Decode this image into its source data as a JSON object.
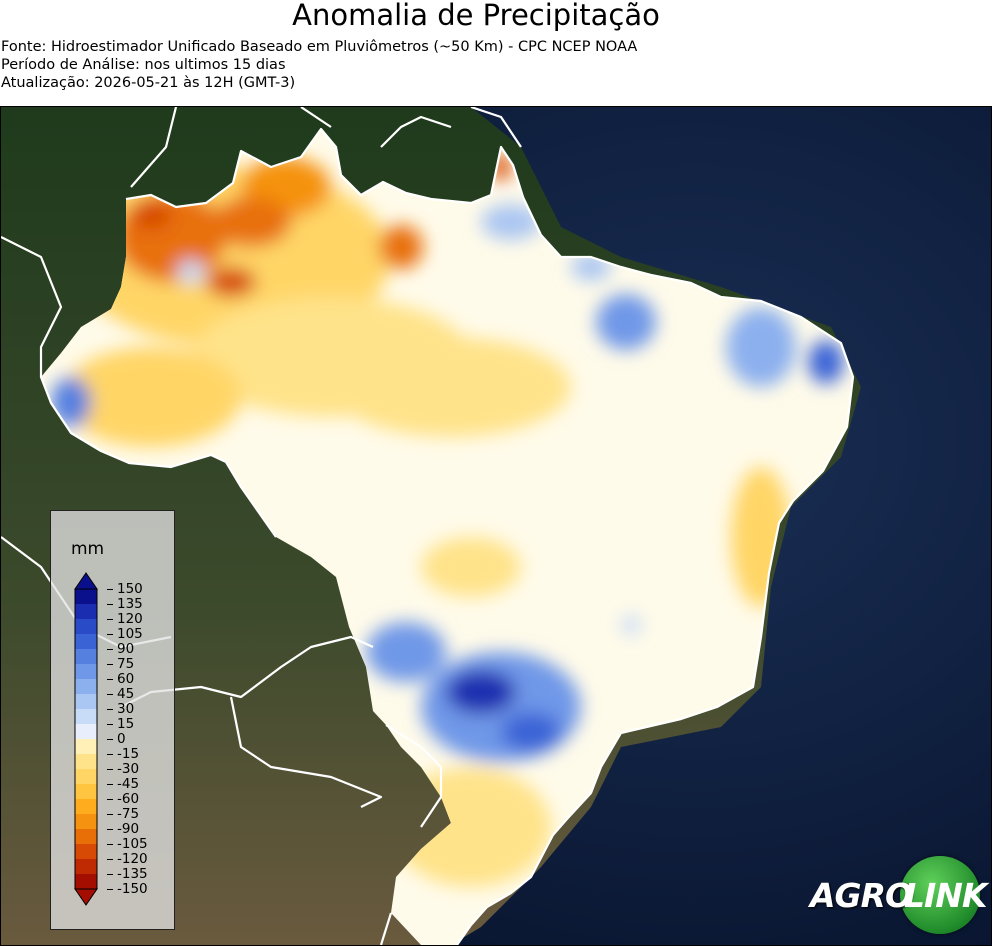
{
  "header": {
    "title": "Anomalia de Precipitação",
    "source": "Fonte: Hidroestimador Unificado Baseado em Pluviômetros (~50 Km) - CPC NCEP NOAA",
    "period": "Período de Análise: nos ultimos 15 dias",
    "updated": "Atualização: 2026-05-21 às 12H (GMT-3)"
  },
  "legend": {
    "unit": "mm",
    "ticks": [
      "150",
      "135",
      "120",
      "105",
      "90",
      "75",
      "60",
      "45",
      "30",
      "15",
      "0",
      "-15",
      "-30",
      "-45",
      "-60",
      "-75",
      "-90",
      "-105",
      "-120",
      "-135",
      "-150"
    ],
    "colors": [
      "#0a0f8c",
      "#1a2db0",
      "#2a4bc8",
      "#3a64d6",
      "#5580e0",
      "#7098e8",
      "#8cb0ee",
      "#aac6f2",
      "#c8dbf7",
      "#e8eefb",
      "#fffbea",
      "#fff0b8",
      "#ffe38a",
      "#ffd566",
      "#ffc440",
      "#ffad1f",
      "#f59210",
      "#e86f08",
      "#d64a05",
      "#c02a03",
      "#a30e00"
    ]
  },
  "map": {
    "ocean_color": "#0b1a33",
    "land_color": "#3a4a2a",
    "border_color": "#ffffff"
  },
  "logo": {
    "text_left": "AGRO",
    "text_right": "LINK"
  }
}
